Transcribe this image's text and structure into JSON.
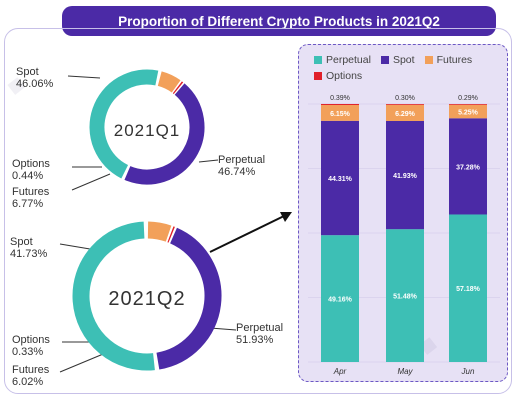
{
  "title": "Proportion of Different Crypto Products in 2021Q2",
  "colors": {
    "perpetual": "#3dbfb5",
    "spot": "#4b2aa6",
    "futures": "#f2a05a",
    "options": "#e0202a"
  },
  "legend": [
    "Perpetual",
    "Spot",
    "Futures",
    "Options"
  ],
  "chart_data": [
    {
      "type": "pie",
      "title": "2021Q1",
      "slices": [
        {
          "name": "Spot",
          "value": 46.06,
          "label": "46.06%"
        },
        {
          "name": "Perpetual",
          "value": 46.74,
          "label": "46.74%"
        },
        {
          "name": "Futures",
          "value": 6.77,
          "label": "6.77%"
        },
        {
          "name": "Options",
          "value": 0.44,
          "label": "0.44%"
        }
      ]
    },
    {
      "type": "pie",
      "title": "2021Q2",
      "slices": [
        {
          "name": "Spot",
          "value": 41.73,
          "label": "41.73%"
        },
        {
          "name": "Perpetual",
          "value": 51.93,
          "label": "51.93%"
        },
        {
          "name": "Futures",
          "value": 6.02,
          "label": "6.02%"
        },
        {
          "name": "Options",
          "value": 0.33,
          "label": "0.33%"
        }
      ]
    },
    {
      "type": "bar",
      "stacked": true,
      "categories": [
        "Apr",
        "May",
        "Jun"
      ],
      "ylim": [
        0,
        100
      ],
      "series": [
        {
          "name": "Perpetual",
          "values": [
            49.16,
            51.48,
            57.18
          ],
          "labels": [
            "49.16%",
            "51.48%",
            "57.18%"
          ]
        },
        {
          "name": "Spot",
          "values": [
            44.31,
            41.93,
            37.28
          ],
          "labels": [
            "44.31%",
            "41.93%",
            "37.28%"
          ]
        },
        {
          "name": "Futures",
          "values": [
            6.15,
            6.29,
            5.25
          ],
          "labels": [
            "6.15%",
            "6.29%",
            "5.25%"
          ]
        },
        {
          "name": "Options",
          "values": [
            0.39,
            0.3,
            0.29
          ],
          "labels": [
            "0.39%",
            "0.30%",
            "0.29%"
          ]
        }
      ]
    }
  ]
}
